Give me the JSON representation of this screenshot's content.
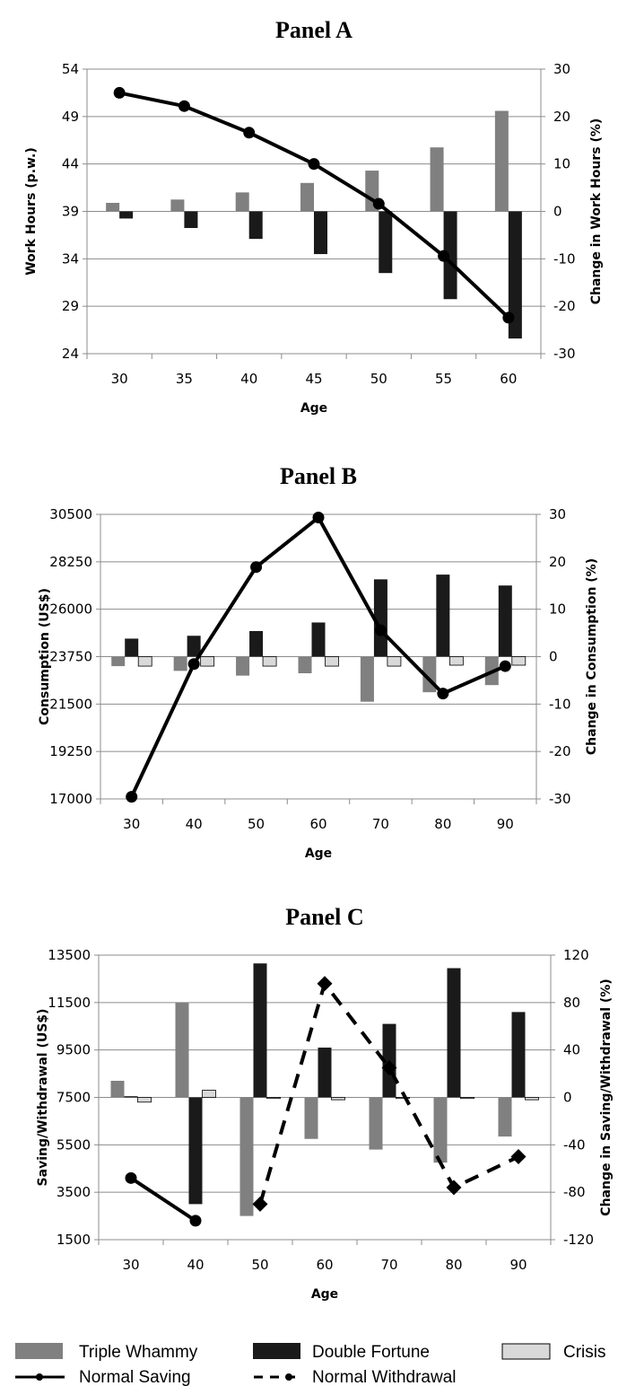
{
  "legend": {
    "triple_whammy": "Triple Whammy",
    "double_fortune": "Double Fortune",
    "crisis": "Crisis",
    "normal_saving": "Normal Saving",
    "normal_withdrawal": "Normal Withdrawal"
  },
  "colors": {
    "triple_whammy": "#808080",
    "double_fortune": "#1a1a1a",
    "crisis": "#d9d9d9",
    "line": "#000000",
    "grid": "#8c8c8c"
  },
  "chart_data": [
    {
      "type": "bar",
      "title": "Panel A",
      "xlabel": "Age",
      "ylabel": "Work Hours (p.w.)",
      "y2label": "Change in Work Hours (%)",
      "categories": [
        "30",
        "35",
        "40",
        "45",
        "50",
        "55",
        "60"
      ],
      "ylim": [
        24,
        54
      ],
      "yticks": [
        24,
        29,
        34,
        39,
        44,
        49,
        54
      ],
      "y2lim": [
        -30,
        30
      ],
      "y2ticks": [
        -30,
        -20,
        -10,
        0,
        10,
        20,
        30
      ],
      "bar_axis": "right",
      "series": [
        {
          "key": "triple_whammy",
          "values": [
            1.8,
            2.5,
            4.0,
            6.0,
            8.6,
            13.5,
            21.2
          ]
        },
        {
          "key": "double_fortune",
          "values": [
            -1.5,
            -3.5,
            -5.8,
            -9.0,
            -13.0,
            -18.5,
            -26.8
          ]
        }
      ],
      "lines": [
        {
          "key": "normal_saving",
          "style": "solid",
          "axis": "left",
          "x_index": [
            0,
            1,
            2,
            3,
            4,
            5,
            6
          ],
          "values": [
            51.5,
            50.1,
            47.3,
            44.0,
            39.8,
            34.3,
            27.8
          ]
        }
      ]
    },
    {
      "type": "bar",
      "title": "Panel B",
      "xlabel": "Age",
      "ylabel": "Consumption (US$)",
      "y2label": "Change in Consumption (%)",
      "categories": [
        "30",
        "40",
        "50",
        "60",
        "70",
        "80",
        "90"
      ],
      "ylim": [
        17000,
        30500
      ],
      "yticks": [
        17000,
        19250,
        21500,
        23750,
        26000,
        28250,
        30500
      ],
      "y2lim": [
        -30,
        30
      ],
      "y2ticks": [
        -30,
        -20,
        -10,
        0,
        10,
        20,
        30
      ],
      "bar_axis": "right",
      "series": [
        {
          "key": "triple_whammy",
          "values": [
            -2.0,
            -3.0,
            -4.0,
            -3.5,
            -9.5,
            -7.5,
            -6.0
          ]
        },
        {
          "key": "double_fortune",
          "values": [
            3.8,
            4.4,
            5.4,
            7.2,
            16.3,
            17.3,
            15.0
          ]
        },
        {
          "key": "crisis",
          "values": [
            -2.0,
            -2.0,
            -2.0,
            -2.0,
            -2.0,
            -1.8,
            -1.8
          ]
        }
      ],
      "lines": [
        {
          "key": "normal_saving",
          "style": "solid",
          "axis": "left",
          "x_index": [
            0,
            1,
            2,
            3,
            4,
            5,
            6
          ],
          "values": [
            17100,
            23400,
            28000,
            30350,
            25000,
            22000,
            23300
          ]
        }
      ]
    },
    {
      "type": "bar",
      "title": "Panel C",
      "xlabel": "Age",
      "ylabel": "Saving/Withdrawal (US$)",
      "y2label": "Change in Saving/Withdrawal (%)",
      "categories": [
        "30",
        "40",
        "50",
        "60",
        "70",
        "80",
        "90"
      ],
      "ylim": [
        1500,
        13500
      ],
      "yticks": [
        1500,
        3500,
        5500,
        7500,
        9500,
        11500,
        13500
      ],
      "y2lim": [
        -120,
        120
      ],
      "y2ticks": [
        -120,
        -80,
        -40,
        0,
        40,
        80,
        120
      ],
      "bar_axis": "right",
      "series": [
        {
          "key": "triple_whammy",
          "values": [
            14,
            80,
            -100,
            -35,
            -44,
            -55,
            -33
          ]
        },
        {
          "key": "double_fortune",
          "values": [
            1,
            -90,
            113,
            42,
            62,
            109,
            72
          ]
        },
        {
          "key": "crisis",
          "values": [
            -4,
            6,
            0,
            -2,
            0,
            0,
            -2
          ]
        }
      ],
      "lines": [
        {
          "key": "normal_saving",
          "style": "solid",
          "axis": "left",
          "x_index": [
            0,
            1
          ],
          "values": [
            4100,
            2300
          ]
        },
        {
          "key": "normal_withdrawal",
          "style": "dashed",
          "axis": "left",
          "x_index": [
            2,
            3,
            4,
            5,
            6
          ],
          "values": [
            3000,
            12300,
            8750,
            3700,
            5000
          ]
        }
      ]
    }
  ]
}
